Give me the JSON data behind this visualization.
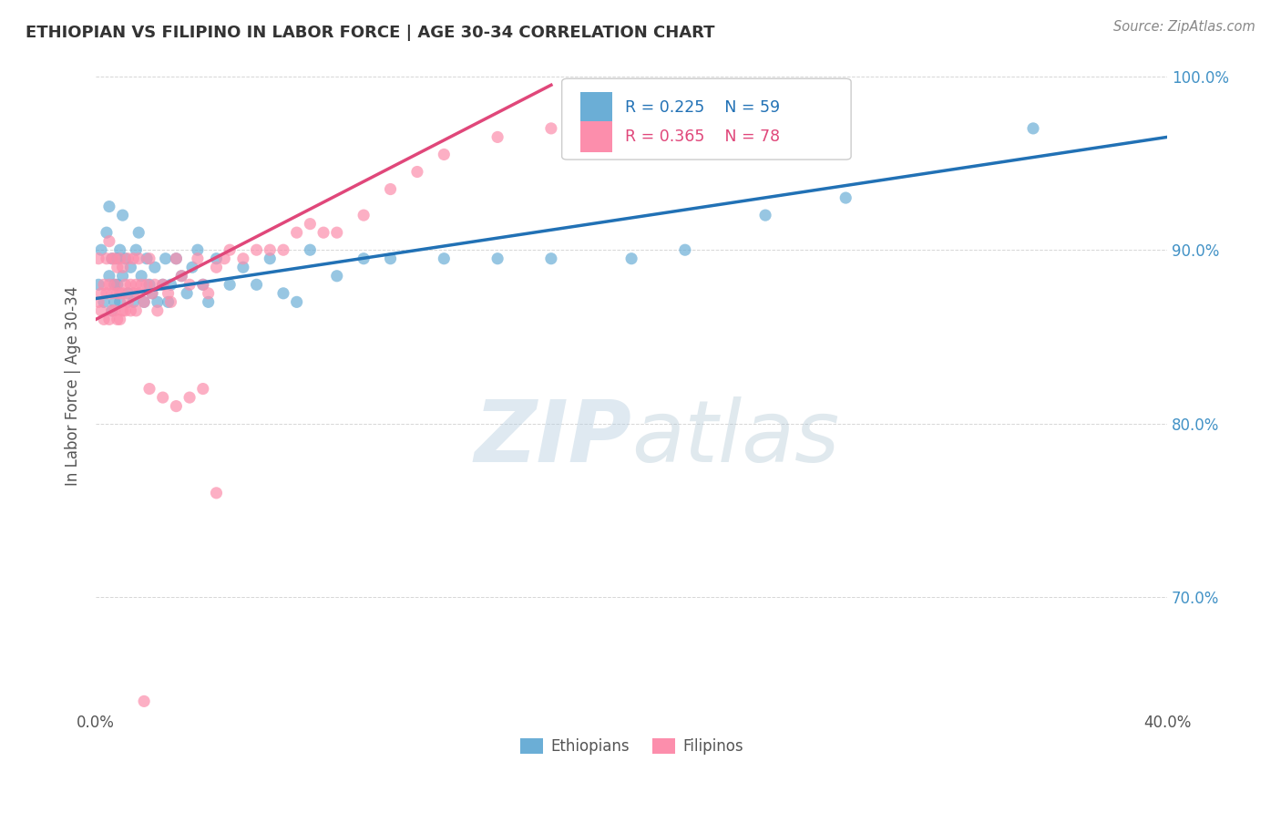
{
  "title": "ETHIOPIAN VS FILIPINO IN LABOR FORCE | AGE 30-34 CORRELATION CHART",
  "source": "Source: ZipAtlas.com",
  "ylabel": "In Labor Force | Age 30-34",
  "xlim": [
    0.0,
    0.4
  ],
  "ylim": [
    0.635,
    1.008
  ],
  "yticks": [
    0.7,
    0.8,
    0.9,
    1.0
  ],
  "ytick_labels": [
    "70.0%",
    "80.0%",
    "90.0%",
    "100.0%"
  ],
  "xtick_positions": [
    0.0,
    0.05,
    0.1,
    0.15,
    0.2,
    0.25,
    0.3,
    0.35,
    0.4
  ],
  "xtick_labels": [
    "0.0%",
    "",
    "",
    "",
    "",
    "",
    "",
    "",
    "40.0%"
  ],
  "legend_R_blue": "0.225",
  "legend_N_blue": "59",
  "legend_R_pink": "0.365",
  "legend_N_pink": "78",
  "blue_color": "#6baed6",
  "pink_color": "#fc8eac",
  "blue_line_color": "#2171b5",
  "pink_line_color": "#e0477a",
  "watermark_zip": "ZIP",
  "watermark_atlas": "atlas",
  "watermark_color_zip": "#b8cfe0",
  "watermark_color_atlas": "#b0c8d8",
  "blue_scatter_x": [
    0.001,
    0.002,
    0.003,
    0.004,
    0.005,
    0.005,
    0.006,
    0.006,
    0.007,
    0.007,
    0.008,
    0.008,
    0.009,
    0.009,
    0.01,
    0.01,
    0.011,
    0.012,
    0.013,
    0.014,
    0.015,
    0.016,
    0.017,
    0.018,
    0.019,
    0.02,
    0.021,
    0.022,
    0.023,
    0.025,
    0.026,
    0.027,
    0.028,
    0.03,
    0.032,
    0.034,
    0.036,
    0.038,
    0.04,
    0.042,
    0.045,
    0.05,
    0.055,
    0.06,
    0.065,
    0.07,
    0.075,
    0.08,
    0.09,
    0.1,
    0.11,
    0.13,
    0.15,
    0.17,
    0.2,
    0.22,
    0.25,
    0.28,
    0.35
  ],
  "blue_scatter_y": [
    0.88,
    0.9,
    0.87,
    0.91,
    0.925,
    0.885,
    0.865,
    0.895,
    0.88,
    0.87,
    0.895,
    0.88,
    0.87,
    0.9,
    0.885,
    0.92,
    0.895,
    0.875,
    0.89,
    0.87,
    0.9,
    0.91,
    0.885,
    0.87,
    0.895,
    0.88,
    0.875,
    0.89,
    0.87,
    0.88,
    0.895,
    0.87,
    0.88,
    0.895,
    0.885,
    0.875,
    0.89,
    0.9,
    0.88,
    0.87,
    0.895,
    0.88,
    0.89,
    0.88,
    0.895,
    0.875,
    0.87,
    0.9,
    0.885,
    0.895,
    0.895,
    0.895,
    0.895,
    0.895,
    0.895,
    0.9,
    0.92,
    0.93,
    0.97
  ],
  "pink_scatter_x": [
    0.001,
    0.001,
    0.002,
    0.002,
    0.003,
    0.003,
    0.004,
    0.004,
    0.005,
    0.005,
    0.005,
    0.006,
    0.006,
    0.006,
    0.007,
    0.007,
    0.007,
    0.008,
    0.008,
    0.008,
    0.009,
    0.009,
    0.009,
    0.01,
    0.01,
    0.01,
    0.011,
    0.011,
    0.012,
    0.012,
    0.013,
    0.013,
    0.014,
    0.014,
    0.015,
    0.015,
    0.016,
    0.016,
    0.017,
    0.018,
    0.019,
    0.02,
    0.021,
    0.022,
    0.023,
    0.025,
    0.027,
    0.028,
    0.03,
    0.032,
    0.035,
    0.038,
    0.04,
    0.042,
    0.045,
    0.048,
    0.05,
    0.055,
    0.06,
    0.065,
    0.07,
    0.075,
    0.08,
    0.085,
    0.09,
    0.1,
    0.11,
    0.12,
    0.13,
    0.15,
    0.17,
    0.02,
    0.025,
    0.03,
    0.035,
    0.04,
    0.018,
    0.045
  ],
  "pink_scatter_y": [
    0.87,
    0.895,
    0.875,
    0.865,
    0.88,
    0.86,
    0.895,
    0.875,
    0.905,
    0.88,
    0.86,
    0.895,
    0.875,
    0.865,
    0.88,
    0.895,
    0.865,
    0.89,
    0.875,
    0.86,
    0.895,
    0.875,
    0.86,
    0.89,
    0.875,
    0.865,
    0.88,
    0.865,
    0.895,
    0.87,
    0.88,
    0.865,
    0.895,
    0.875,
    0.88,
    0.865,
    0.895,
    0.875,
    0.88,
    0.87,
    0.88,
    0.895,
    0.875,
    0.88,
    0.865,
    0.88,
    0.875,
    0.87,
    0.895,
    0.885,
    0.88,
    0.895,
    0.88,
    0.875,
    0.89,
    0.895,
    0.9,
    0.895,
    0.9,
    0.9,
    0.9,
    0.91,
    0.915,
    0.91,
    0.91,
    0.92,
    0.935,
    0.945,
    0.955,
    0.965,
    0.97,
    0.82,
    0.815,
    0.81,
    0.815,
    0.82,
    0.64,
    0.76
  ],
  "blue_trend_x": [
    0.0,
    0.4
  ],
  "blue_trend_y": [
    0.872,
    0.965
  ],
  "pink_trend_x": [
    0.0,
    0.17
  ],
  "pink_trend_y": [
    0.86,
    0.995
  ]
}
